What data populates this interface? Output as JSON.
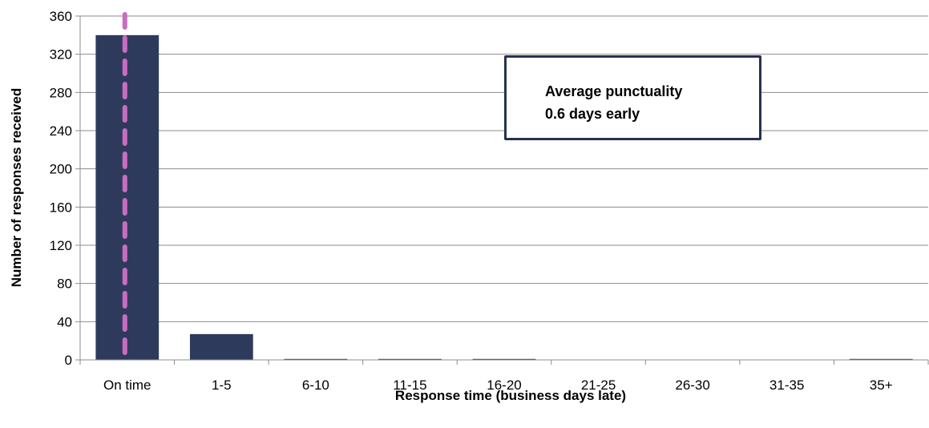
{
  "chart_data": {
    "type": "bar",
    "title": "",
    "xlabel": "Response time (business days late)",
    "ylabel": "Number of responses received",
    "categories": [
      "On time",
      "1-5",
      "6-10",
      "11-15",
      "16-20",
      "21-25",
      "26-30",
      "31-35",
      "35+"
    ],
    "values": [
      340,
      27,
      1,
      1,
      1,
      0,
      0,
      0,
      1
    ],
    "ylim": [
      0,
      360
    ],
    "yticks": [
      0,
      40,
      80,
      120,
      160,
      200,
      240,
      280,
      320,
      360
    ],
    "grid": true,
    "legend": "none",
    "bar_color": "#2e3a5c",
    "average_line": {
      "category": "On time",
      "color": "#c86dc0",
      "style": "dashed"
    },
    "annotation": {
      "lines": [
        "Average punctuality",
        "0.6 days early"
      ],
      "border_color": "#263250"
    }
  }
}
